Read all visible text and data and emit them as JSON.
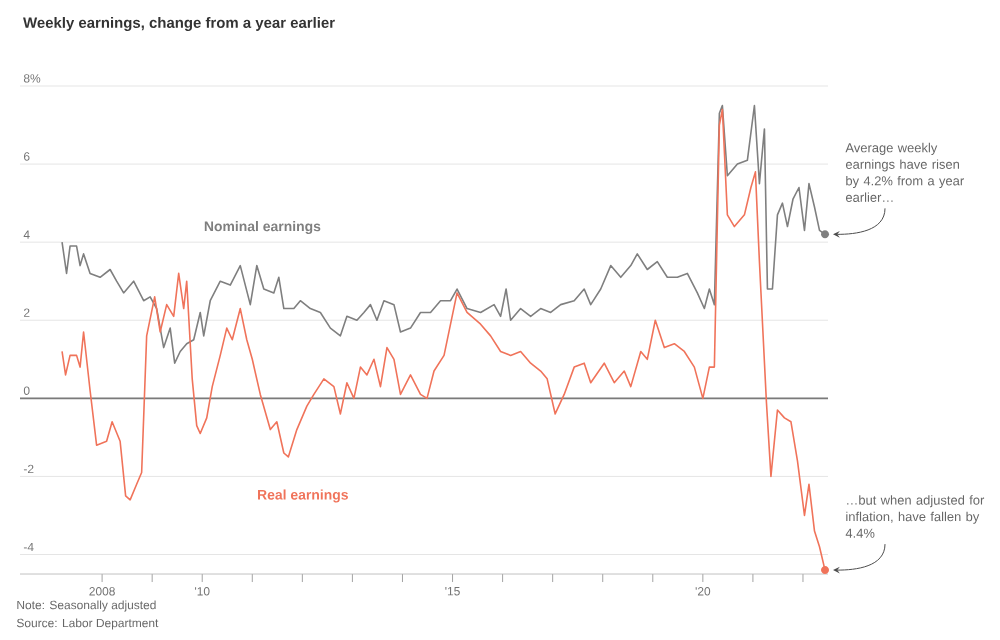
{
  "chart_data": {
    "type": "line",
    "title": "Weekly earnings, change from a year earlier",
    "xlim": [
      2006.36,
      2022.5
    ],
    "ylim": [
      -4.5,
      8
    ],
    "xticks": [
      {
        "value": 2008,
        "label": "2008"
      },
      {
        "value": 2009,
        "label": null
      },
      {
        "value": 2010,
        "label": "'10"
      },
      {
        "value": 2011,
        "label": null
      },
      {
        "value": 2012,
        "label": null
      },
      {
        "value": 2013,
        "label": null
      },
      {
        "value": 2014,
        "label": null
      },
      {
        "value": 2015,
        "label": "'15"
      },
      {
        "value": 2016,
        "label": null
      },
      {
        "value": 2017,
        "label": null
      },
      {
        "value": 2018,
        "label": null
      },
      {
        "value": 2019,
        "label": null
      },
      {
        "value": 2020,
        "label": "'20"
      },
      {
        "value": 2021,
        "label": null
      },
      {
        "value": 2022,
        "label": null
      }
    ],
    "yticks": [
      -4,
      -2,
      0,
      2,
      4,
      6,
      {
        "value": 8,
        "label": "8%"
      }
    ],
    "grid": "y",
    "legend": false,
    "marker": "none",
    "line_style": "solid",
    "ref_lines": [
      {
        "axis": "y",
        "value": 0,
        "color": "#7a7a7a"
      }
    ],
    "series": [
      {
        "name": "Nominal earnings",
        "color": "#7f7f7f",
        "x": [
          2007.2,
          2007.29,
          2007.36,
          2007.49,
          2007.56,
          2007.63,
          2007.76,
          2007.96,
          2008.16,
          2008.29,
          2008.43,
          2008.63,
          2008.83,
          2008.96,
          2009.09,
          2009.23,
          2009.36,
          2009.45,
          2009.56,
          2009.69,
          2009.83,
          2009.96,
          2010.03,
          2010.16,
          2010.36,
          2010.56,
          2010.76,
          2010.96,
          2011.09,
          2011.23,
          2011.43,
          2011.53,
          2011.63,
          2011.83,
          2011.96,
          2012.16,
          2012.36,
          2012.56,
          2012.76,
          2012.89,
          2013.09,
          2013.23,
          2013.36,
          2013.49,
          2013.63,
          2013.83,
          2013.96,
          2014.16,
          2014.36,
          2014.56,
          2014.76,
          2014.96,
          2015.09,
          2015.29,
          2015.56,
          2015.83,
          2015.96,
          2016.07,
          2016.16,
          2016.36,
          2016.56,
          2016.76,
          2016.96,
          2017.16,
          2017.43,
          2017.63,
          2017.76,
          2017.96,
          2018.16,
          2018.36,
          2018.56,
          2018.69,
          2018.89,
          2019.09,
          2019.29,
          2019.49,
          2019.69,
          2019.89,
          2020.03,
          2020.13,
          2020.23,
          2020.33,
          2020.39,
          2020.49,
          2020.69,
          2020.89,
          2021.03,
          2021.13,
          2021.23,
          2021.29,
          2021.39,
          2021.49,
          2021.59,
          2021.69,
          2021.8,
          2021.92,
          2022.03,
          2022.12,
          2022.23,
          2022.33,
          2022.44
        ],
        "values": [
          4.0,
          3.2,
          3.9,
          3.9,
          3.4,
          3.7,
          3.2,
          3.1,
          3.3,
          3.0,
          2.7,
          3.0,
          2.5,
          2.6,
          2.3,
          1.3,
          1.8,
          0.9,
          1.2,
          1.4,
          1.5,
          2.2,
          1.6,
          2.5,
          3.0,
          2.9,
          3.4,
          2.4,
          3.4,
          2.8,
          2.7,
          3.1,
          2.3,
          2.3,
          2.5,
          2.3,
          2.2,
          1.8,
          1.6,
          2.1,
          2.0,
          2.2,
          2.4,
          2.0,
          2.5,
          2.4,
          1.7,
          1.8,
          2.2,
          2.2,
          2.5,
          2.5,
          2.8,
          2.3,
          2.2,
          2.4,
          2.1,
          2.8,
          2.0,
          2.3,
          2.1,
          2.3,
          2.2,
          2.4,
          2.5,
          2.8,
          2.4,
          2.8,
          3.4,
          3.1,
          3.4,
          3.7,
          3.3,
          3.5,
          3.1,
          3.1,
          3.2,
          2.7,
          2.3,
          2.8,
          2.4,
          7.3,
          7.5,
          5.7,
          6.0,
          6.1,
          7.5,
          5.5,
          6.9,
          2.8,
          2.8,
          4.7,
          5.0,
          4.4,
          5.1,
          5.4,
          4.3,
          5.5,
          4.9,
          4.3,
          4.2
        ]
      },
      {
        "name": "Real earnings",
        "color": "#f0735a",
        "x": [
          2007.2,
          2007.27,
          2007.36,
          2007.49,
          2007.56,
          2007.63,
          2007.76,
          2007.89,
          2008.09,
          2008.2,
          2008.36,
          2008.47,
          2008.56,
          2008.69,
          2008.79,
          2008.89,
          2009.05,
          2009.16,
          2009.29,
          2009.43,
          2009.53,
          2009.63,
          2009.69,
          2009.8,
          2009.89,
          2009.96,
          2010.09,
          2010.2,
          2010.36,
          2010.49,
          2010.6,
          2010.76,
          2010.89,
          2011.0,
          2011.16,
          2011.36,
          2011.49,
          2011.63,
          2011.72,
          2011.89,
          2012.09,
          2012.23,
          2012.43,
          2012.63,
          2012.76,
          2012.89,
          2013.03,
          2013.16,
          2013.29,
          2013.43,
          2013.56,
          2013.69,
          2013.83,
          2013.96,
          2014.16,
          2014.36,
          2014.49,
          2014.63,
          2014.83,
          2014.96,
          2015.09,
          2015.29,
          2015.56,
          2015.76,
          2015.96,
          2016.16,
          2016.36,
          2016.56,
          2016.76,
          2016.89,
          2017.05,
          2017.23,
          2017.43,
          2017.63,
          2017.76,
          2018.03,
          2018.23,
          2018.43,
          2018.56,
          2018.76,
          2018.89,
          2019.05,
          2019.23,
          2019.43,
          2019.63,
          2019.83,
          2020.0,
          2020.13,
          2020.23,
          2020.33,
          2020.39,
          2020.49,
          2020.63,
          2020.83,
          2020.96,
          2021.05,
          2021.13,
          2021.27,
          2021.36,
          2021.49,
          2021.63,
          2021.76,
          2021.89,
          2022.03,
          2022.12,
          2022.23,
          2022.33,
          2022.44
        ],
        "values": [
          1.2,
          0.6,
          1.1,
          1.1,
          0.8,
          1.7,
          0.2,
          -1.2,
          -1.1,
          -0.6,
          -1.1,
          -2.5,
          -2.6,
          -2.2,
          -1.9,
          1.6,
          2.6,
          1.7,
          2.4,
          2.1,
          3.2,
          2.3,
          3.0,
          0.5,
          -0.7,
          -0.9,
          -0.5,
          0.3,
          1.1,
          1.8,
          1.5,
          2.3,
          1.5,
          1.0,
          0.1,
          -0.8,
          -0.6,
          -1.4,
          -1.5,
          -0.8,
          -0.2,
          0.1,
          0.5,
          0.3,
          -0.4,
          0.4,
          0.0,
          0.8,
          0.6,
          1.0,
          0.3,
          1.3,
          1.0,
          0.1,
          0.6,
          0.1,
          0.0,
          0.7,
          1.1,
          1.9,
          2.7,
          2.2,
          1.9,
          1.6,
          1.2,
          1.1,
          1.2,
          0.9,
          0.7,
          0.5,
          -0.4,
          0.1,
          0.8,
          0.9,
          0.4,
          0.9,
          0.4,
          0.7,
          0.3,
          1.2,
          1.0,
          2.0,
          1.3,
          1.4,
          1.2,
          0.8,
          0.0,
          0.8,
          0.8,
          7.0,
          7.4,
          4.7,
          4.4,
          4.7,
          5.4,
          5.8,
          3.5,
          -0.1,
          -2.0,
          -0.3,
          -0.5,
          -0.6,
          -1.6,
          -3.0,
          -2.2,
          -3.4,
          -3.8,
          -4.4
        ]
      }
    ],
    "annotations": [
      {
        "text": "Average weekly earnings have risen by 4.2% from a year earlier…",
        "x": 2022.44,
        "y": 4.2
      },
      {
        "text": "…but when adjusted for inflation, have fallen by 4.4%",
        "x": 2022.44,
        "y": -4.4
      },
      "Note: Seasonally adjusted",
      "Source: Labor Department"
    ]
  }
}
